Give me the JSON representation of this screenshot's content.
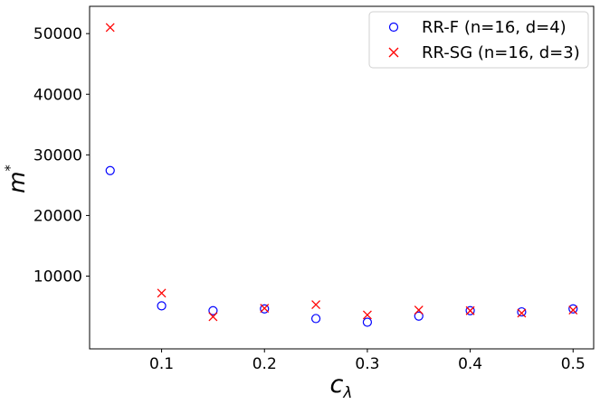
{
  "chart_data": {
    "type": "scatter",
    "title": "",
    "xlabel": "c",
    "xlabel_subscript": "λ",
    "ylabel": "m",
    "ylabel_superscript": "*",
    "xlim": [
      0.03,
      0.52
    ],
    "ylim": [
      -2000,
      54500
    ],
    "xticks": [
      0.1,
      0.2,
      0.3,
      0.4,
      0.5
    ],
    "xtick_labels": [
      "0.1",
      "0.2",
      "0.3",
      "0.4",
      "0.5"
    ],
    "yticks": [
      10000,
      20000,
      30000,
      40000,
      50000
    ],
    "ytick_labels": [
      "10000",
      "20000",
      "30000",
      "40000",
      "50000"
    ],
    "grid": false,
    "legend_position": "top-right",
    "series": [
      {
        "name": "RR-F (n=16, d=4)",
        "marker": "circle",
        "color": "#0000ff",
        "x": [
          0.05,
          0.1,
          0.15,
          0.2,
          0.25,
          0.3,
          0.35,
          0.4,
          0.45,
          0.5
        ],
        "y": [
          27400,
          5100,
          4300,
          4600,
          3000,
          2400,
          3400,
          4300,
          4100,
          4600
        ]
      },
      {
        "name": "RR-SG (n=16, d=3)",
        "marker": "x",
        "color": "#ff0000",
        "x": [
          0.05,
          0.1,
          0.15,
          0.2,
          0.25,
          0.3,
          0.35,
          0.4,
          0.45,
          0.5
        ],
        "y": [
          51000,
          7200,
          3300,
          4700,
          5300,
          3600,
          4400,
          4300,
          3900,
          4400
        ]
      }
    ]
  }
}
